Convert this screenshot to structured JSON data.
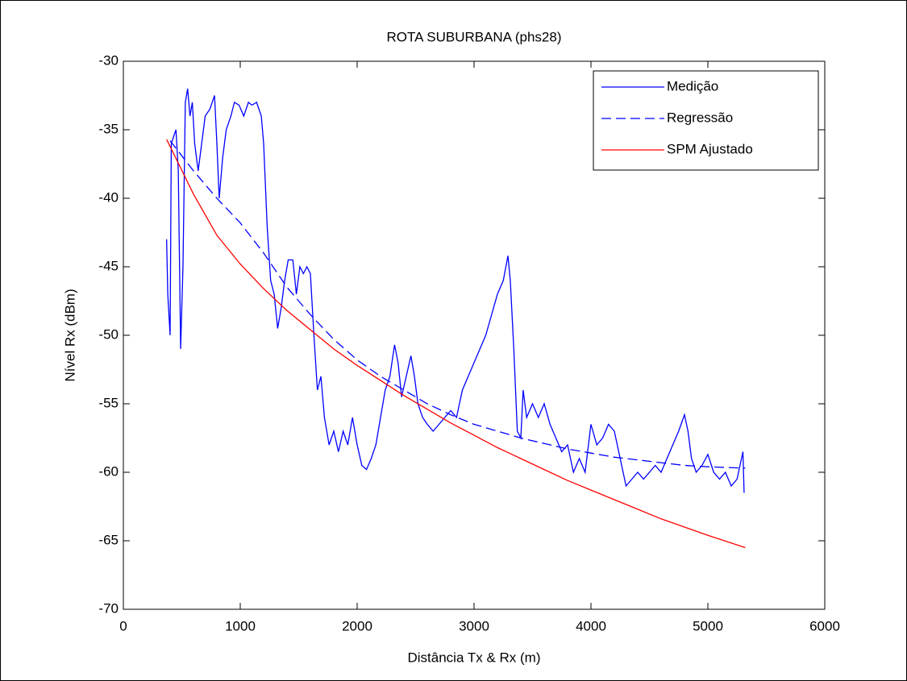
{
  "chart_data": {
    "type": "line",
    "title": "ROTA SUBURBANA (phs28)",
    "x_label": "Distância Tx & Rx (m)",
    "y_label": "Nível Rx (dBm)",
    "xlim": [
      0,
      6000
    ],
    "xticks": [
      0,
      1000,
      2000,
      3000,
      4000,
      5000,
      6000
    ],
    "ylim": [
      -70,
      -30
    ],
    "yticks": [
      -70,
      -65,
      -60,
      -55,
      -50,
      -45,
      -40,
      -35,
      -30
    ],
    "grid": false,
    "legend": "upper right",
    "series": [
      {
        "name": "Medição",
        "color": "#0000ff",
        "style": "solid",
        "x": [
          370,
          380,
          400,
          410,
          430,
          450,
          470,
          490,
          510,
          530,
          550,
          570,
          590,
          610,
          640,
          670,
          700,
          740,
          780,
          800,
          820,
          850,
          880,
          920,
          950,
          990,
          1030,
          1070,
          1100,
          1140,
          1180,
          1200,
          1230,
          1260,
          1290,
          1320,
          1350,
          1380,
          1410,
          1450,
          1480,
          1510,
          1540,
          1570,
          1600,
          1630,
          1660,
          1690,
          1720,
          1760,
          1800,
          1840,
          1880,
          1920,
          1960,
          2000,
          2040,
          2080,
          2120,
          2160,
          2200,
          2240,
          2280,
          2320,
          2350,
          2380,
          2420,
          2460,
          2490,
          2520,
          2560,
          2600,
          2650,
          2700,
          2750,
          2800,
          2850,
          2900,
          2950,
          3000,
          3050,
          3100,
          3150,
          3200,
          3250,
          3290,
          3310,
          3340,
          3370,
          3400,
          3420,
          3450,
          3500,
          3550,
          3600,
          3650,
          3700,
          3750,
          3800,
          3850,
          3900,
          3950,
          4000,
          4050,
          4100,
          4150,
          4200,
          4250,
          4300,
          4350,
          4400,
          4450,
          4500,
          4550,
          4600,
          4650,
          4700,
          4750,
          4800,
          4830,
          4860,
          4900,
          4950,
          5000,
          5050,
          5100,
          5150,
          5200,
          5250,
          5300,
          5310
        ],
        "values": [
          -43,
          -47,
          -50,
          -36,
          -35.5,
          -35,
          -38,
          -51,
          -45,
          -33,
          -32,
          -34,
          -33,
          -36,
          -38,
          -36,
          -34,
          -33.5,
          -32.5,
          -36,
          -40,
          -37,
          -35,
          -34,
          -33,
          -33.2,
          -34,
          -33,
          -33.2,
          -33,
          -34,
          -36,
          -42,
          -46,
          -47,
          -49.5,
          -48,
          -46,
          -44.5,
          -44.5,
          -47,
          -45,
          -45.5,
          -45,
          -45.5,
          -50,
          -54,
          -53,
          -56,
          -58,
          -57,
          -58.5,
          -57,
          -58,
          -56,
          -58,
          -59.5,
          -59.8,
          -59,
          -58,
          -56,
          -54,
          -53,
          -50.7,
          -52,
          -54.5,
          -53,
          -51.5,
          -53,
          -55,
          -56,
          -56.5,
          -57,
          -56.5,
          -56,
          -55.5,
          -56,
          -54,
          -53,
          -52,
          -51,
          -50,
          -48.5,
          -47,
          -46,
          -44.2,
          -46,
          -51,
          -57,
          -57.5,
          -54,
          -56,
          -55,
          -56,
          -55,
          -56.5,
          -57.5,
          -58.5,
          -58,
          -60,
          -59,
          -60,
          -56.5,
          -58,
          -57.5,
          -56.5,
          -57,
          -59,
          -61,
          -60.5,
          -60,
          -60.5,
          -60,
          -59.5,
          -60,
          -59,
          -58,
          -57,
          -55.8,
          -57,
          -59,
          -60,
          -59.5,
          -58.7,
          -60,
          -60.5,
          -60,
          -61,
          -60.5,
          -58.5,
          -61.5
        ]
      },
      {
        "name": "Regressão",
        "color": "#0000ff",
        "style": "dashed",
        "x": [
          400,
          600,
          800,
          1000,
          1200,
          1400,
          1600,
          1800,
          2000,
          2200,
          2400,
          2600,
          2800,
          3000,
          3200,
          3400,
          3600,
          3800,
          4000,
          4200,
          4400,
          4600,
          4800,
          5000,
          5320
        ],
        "values": [
          -35.8,
          -38,
          -40,
          -41.8,
          -44,
          -46.5,
          -48.5,
          -50.3,
          -51.8,
          -53,
          -54,
          -55,
          -55.8,
          -56.5,
          -57,
          -57.5,
          -57.9,
          -58.3,
          -58.6,
          -58.9,
          -59.1,
          -59.3,
          -59.5,
          -59.6,
          -59.7
        ]
      },
      {
        "name": "SPM Ajustado",
        "color": "#ff0000",
        "style": "solid",
        "x": [
          370,
          600,
          800,
          1000,
          1200,
          1400,
          1600,
          1800,
          2000,
          2200,
          2400,
          2600,
          2800,
          3000,
          3200,
          3400,
          3600,
          3800,
          4000,
          4200,
          4400,
          4600,
          4800,
          5000,
          5320
        ],
        "values": [
          -35.7,
          -39.7,
          -42.7,
          -44.8,
          -46.6,
          -48.2,
          -49.6,
          -51,
          -52.2,
          -53.3,
          -54.4,
          -55.4,
          -56.4,
          -57.3,
          -58.2,
          -59,
          -59.8,
          -60.6,
          -61.3,
          -62,
          -62.7,
          -63.4,
          -64,
          -64.6,
          -65.5
        ]
      }
    ]
  }
}
